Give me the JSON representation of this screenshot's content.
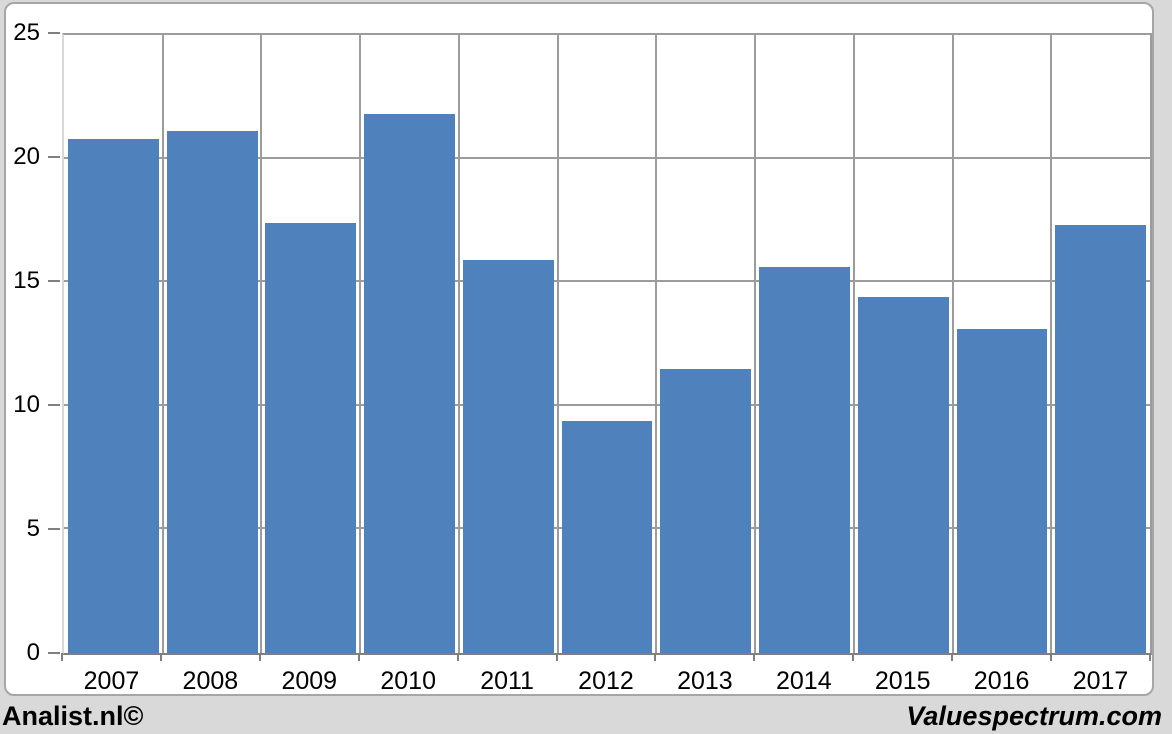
{
  "chart_data": {
    "type": "bar",
    "categories": [
      "2007",
      "2008",
      "2009",
      "2010",
      "2011",
      "2012",
      "2013",
      "2014",
      "2015",
      "2016",
      "2017"
    ],
    "values": [
      20.8,
      21.1,
      17.4,
      21.8,
      15.9,
      9.4,
      11.5,
      15.6,
      14.4,
      13.1,
      17.3
    ],
    "title": "",
    "xlabel": "",
    "ylabel": "",
    "ylim": [
      0,
      25
    ],
    "yticks": [
      0,
      5,
      10,
      15,
      20,
      25
    ],
    "grid": true,
    "legend": "none"
  },
  "footer": {
    "left_text": "Analist.nl©",
    "right_text": "Valuespectrum.com"
  },
  "colors": {
    "background": "#D9D9D9",
    "panel_background": "#FFFFFF",
    "panel_border": "#A6A6A6",
    "gridline": "#9C9C9C",
    "axis_line": "#7F7F7F",
    "axis_line_light": "#D8D8D8",
    "bar": "#4F81BD",
    "text": "#000000"
  }
}
